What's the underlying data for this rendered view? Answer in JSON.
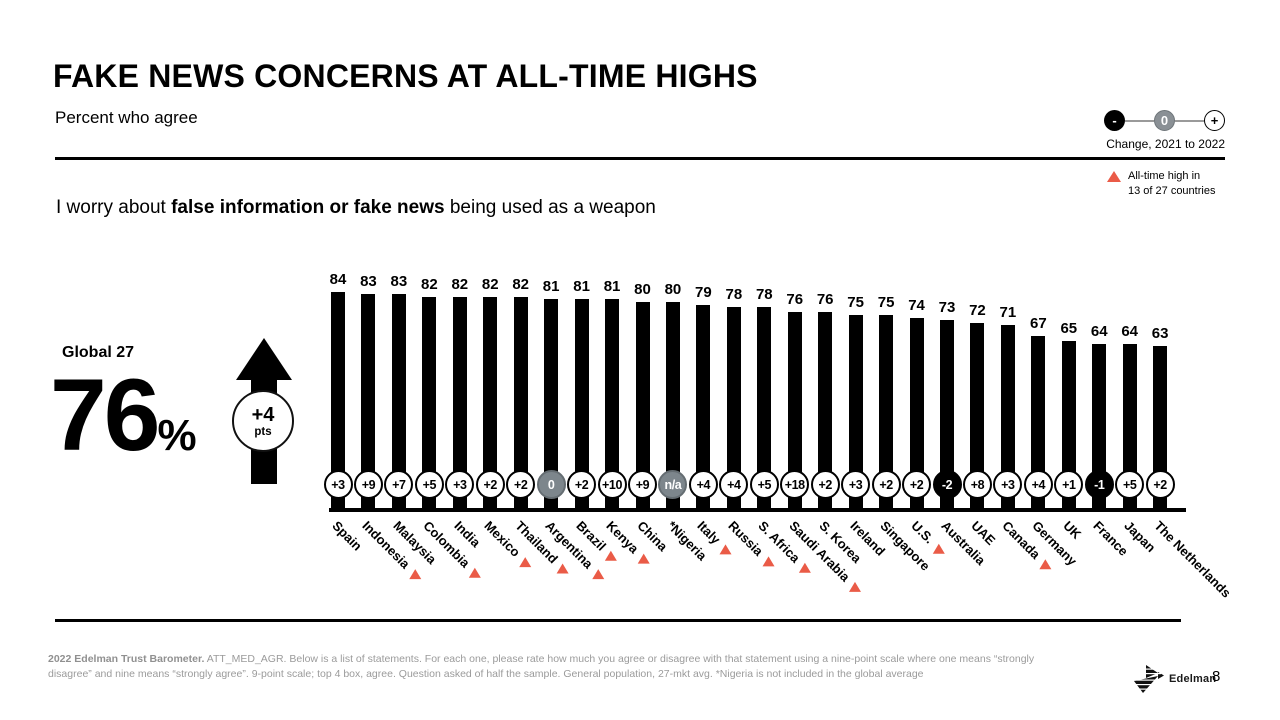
{
  "slide": {
    "title": "FAKE NEWS CONCERNS AT ALL-TIME HIGHS",
    "subtitle": "Percent who agree",
    "brand": "Edelman",
    "page_number": "8"
  },
  "legend": {
    "minus_symbol": "-",
    "zero_symbol": "0",
    "plus_symbol": "+",
    "change_caption": "Change, 2021 to 2022",
    "alltime_line1": "All-time high in",
    "alltime_line2": "13 of 27 countries"
  },
  "question": {
    "prefix": "I worry about ",
    "bold": "false information or fake news",
    "suffix": " being used as a weapon"
  },
  "global": {
    "label": "Global 27",
    "value": "76",
    "percent_sign": "%",
    "change_value": "+4",
    "change_unit": "pts"
  },
  "footer": {
    "bold": "2022 Edelman Trust Barometer.",
    "text": " ATT_MED_AGR. Below is a list of statements. For each one, please rate how much you agree or disagree with that statement using a nine-point scale where one means “strongly disagree” and nine means “strongly agree”. 9-point scale; top 4 box, agree. Question asked of half the sample. General population, 27-mkt avg. *Nigeria is not included in the global average"
  },
  "colors": {
    "bar": "#000000",
    "badge_positive_bg": "#ffffff",
    "badge_neutral_bg": "#7d868c",
    "badge_negative_bg": "#000000",
    "alltime_triangle": "#EA5B47"
  },
  "chart_data": {
    "type": "bar",
    "title": "Percent who agree: I worry about false information or fake news being used as a weapon",
    "xlabel": "",
    "ylabel": "Percent who agree",
    "ylim": [
      0,
      100
    ],
    "grid": false,
    "categories": [
      "Spain",
      "Indonesia",
      "Malaysia",
      "Colombia",
      "India",
      "Mexico",
      "Thailand",
      "Argentina",
      "Brazil",
      "Kenya",
      "China",
      "*Nigeria",
      "Italy",
      "Russia",
      "S. Africa",
      "Saudi Arabia",
      "S. Korea",
      "Ireland",
      "Singapore",
      "U.S.",
      "Australia",
      "UAE",
      "Canada",
      "Germany",
      "UK",
      "France",
      "Japan",
      "The Netherlands"
    ],
    "values": [
      84,
      83,
      83,
      82,
      82,
      82,
      82,
      81,
      81,
      81,
      80,
      80,
      79,
      78,
      78,
      76,
      76,
      75,
      75,
      74,
      73,
      72,
      71,
      67,
      65,
      64,
      64,
      63
    ],
    "changes": [
      "+3",
      "+9",
      "+7",
      "+5",
      "+3",
      "+2",
      "+2",
      "0",
      "+2",
      "+10",
      "+9",
      "n/a",
      "+4",
      "+4",
      "+5",
      "+18",
      "+2",
      "+3",
      "+2",
      "+2",
      "-2",
      "+8",
      "+3",
      "+4",
      "+1",
      "-1",
      "+5",
      "+2"
    ],
    "change_badge_styles": [
      "white",
      "white",
      "white",
      "white",
      "white",
      "white",
      "white",
      "gray",
      "white",
      "white",
      "white",
      "gray",
      "white",
      "white",
      "white",
      "white",
      "white",
      "white",
      "white",
      "white",
      "black",
      "white",
      "white",
      "white",
      "white",
      "black",
      "white",
      "white"
    ],
    "all_time_high": [
      false,
      true,
      false,
      true,
      false,
      true,
      true,
      true,
      true,
      true,
      false,
      false,
      true,
      true,
      true,
      true,
      false,
      false,
      false,
      true,
      false,
      false,
      true,
      false,
      false,
      false,
      false,
      false
    ]
  }
}
